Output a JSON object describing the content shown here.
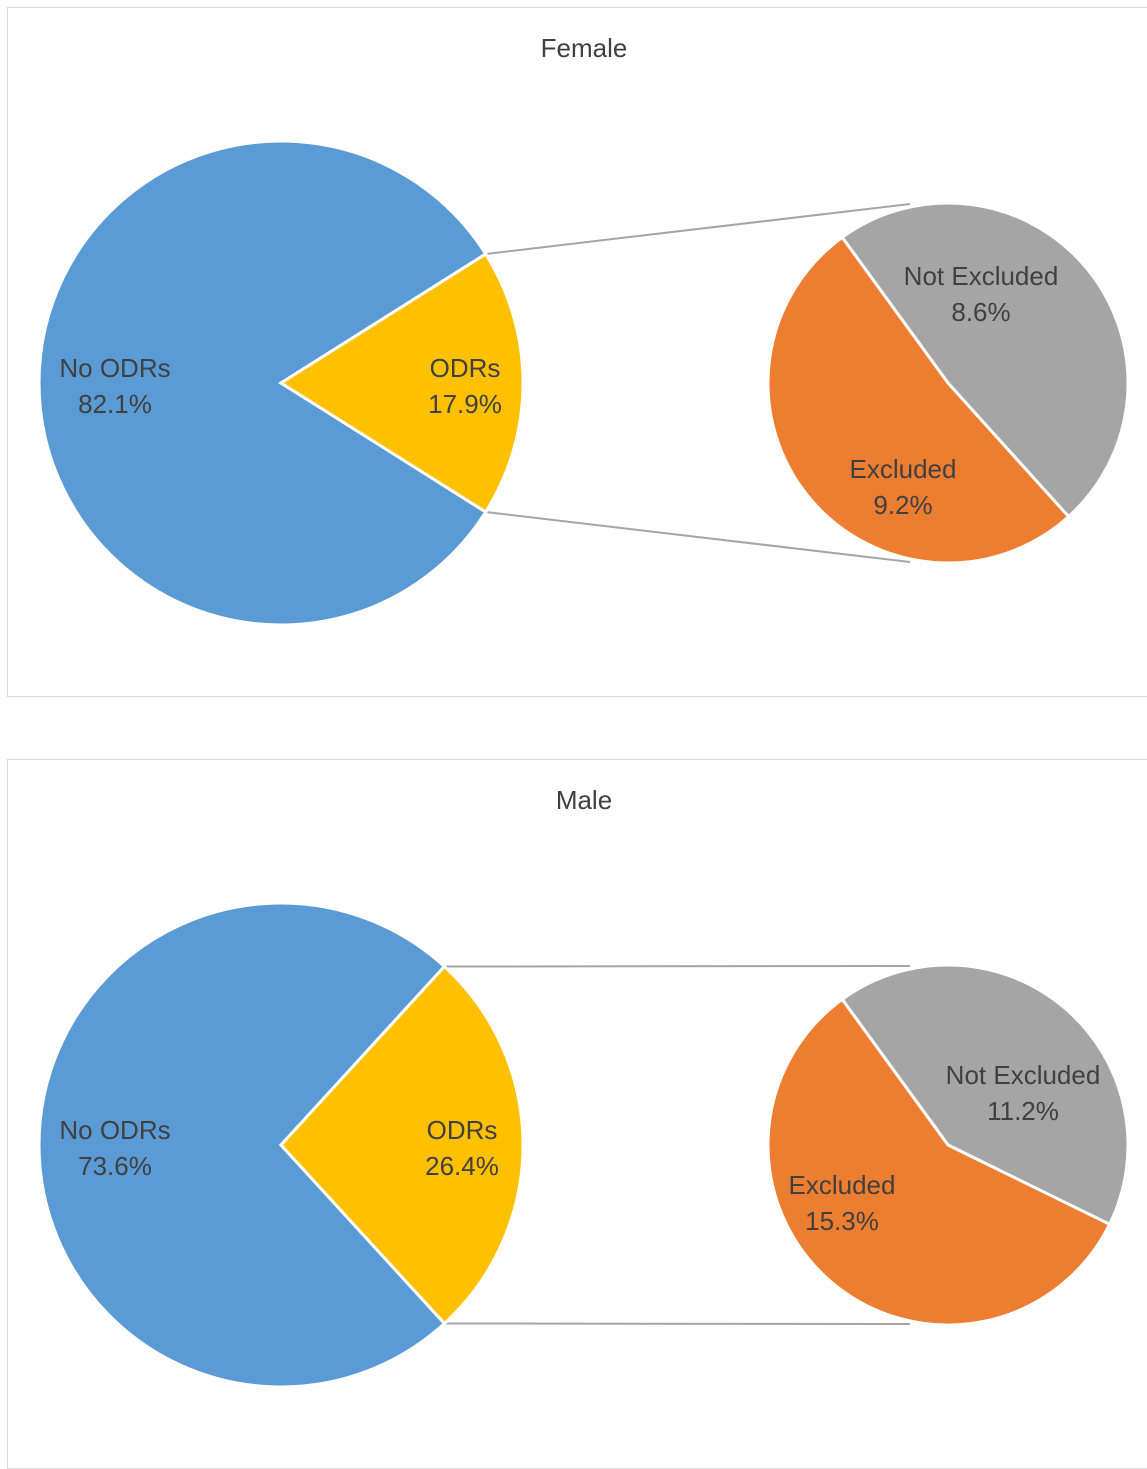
{
  "chart_data": [
    {
      "type": "pie",
      "subtype": "pie-of-pie",
      "title": "Female",
      "main_slices": [
        {
          "label": "No ODRs",
          "value": 82.1,
          "value_label": "82.1%",
          "color": "#5B9BD5"
        },
        {
          "label": "ODRs",
          "value": 17.9,
          "value_label": "17.9%",
          "color": "#FFC000"
        }
      ],
      "secondary_slices": [
        {
          "label": "Not Excluded",
          "value": 8.6,
          "value_label": "8.6%",
          "color": "#A5A5A5"
        },
        {
          "label": "Excluded",
          "value": 9.2,
          "value_label": "9.2%",
          "color": "#ED7D31"
        }
      ]
    },
    {
      "type": "pie",
      "subtype": "pie-of-pie",
      "title": "Male",
      "main_slices": [
        {
          "label": "No ODRs",
          "value": 73.6,
          "value_label": "73.6%",
          "color": "#5B9BD5"
        },
        {
          "label": "ODRs",
          "value": 26.4,
          "value_label": "26.4%",
          "color": "#FFC000"
        }
      ],
      "secondary_slices": [
        {
          "label": "Not Excluded",
          "value": 11.2,
          "value_label": "11.2%",
          "color": "#A5A5A5"
        },
        {
          "label": "Excluded",
          "value": 15.3,
          "value_label": "15.3%",
          "color": "#ED7D31"
        }
      ]
    }
  ],
  "colors": {
    "connector": "#A5A5A5",
    "slice_border": "#FFFFFF",
    "text": "#404040"
  }
}
